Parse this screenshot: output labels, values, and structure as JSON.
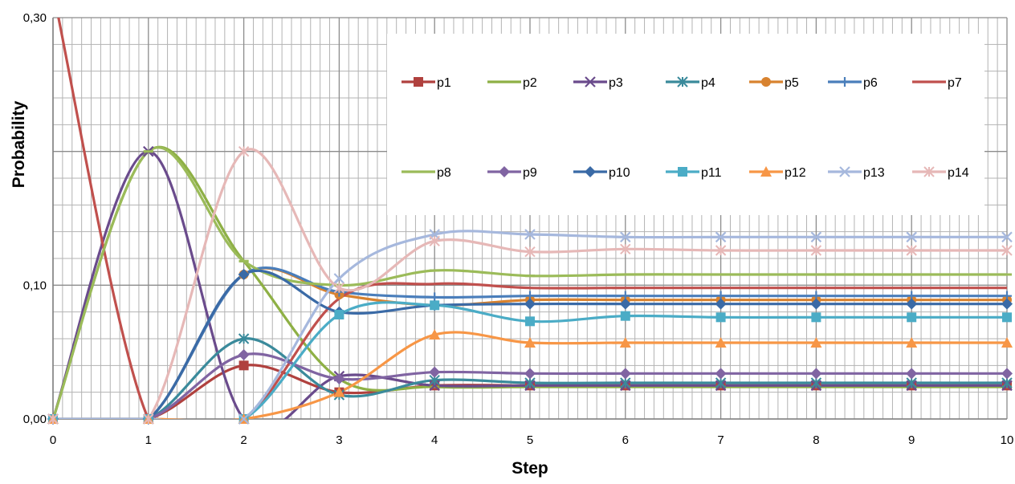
{
  "chart_data": {
    "type": "line",
    "title": "",
    "xlabel": "Step",
    "ylabel": "Probability",
    "xlim": [
      0,
      10
    ],
    "ylim": [
      0,
      0.3
    ],
    "x_ticks": [
      "0",
      "1",
      "2",
      "3",
      "4",
      "5",
      "6",
      "7",
      "8",
      "9",
      "10"
    ],
    "y_tick_labels": [
      "0,00",
      "0,10",
      "",
      "0,30"
    ],
    "y_tick_values": [
      0,
      0.1,
      0.2,
      0.3
    ],
    "grid": true,
    "legend_position": "top-right",
    "x": [
      0,
      1,
      2,
      3,
      4,
      5,
      6,
      7,
      8,
      9,
      10
    ],
    "series": [
      {
        "name": "p1",
        "color": "#b0413e",
        "marker": "square",
        "values": [
          0,
          0,
          0.04,
          0.02,
          0.025,
          0.025,
          0.025,
          0.025,
          0.025,
          0.025,
          0.025
        ]
      },
      {
        "name": "p2",
        "color": "#8eb045",
        "marker": "dash",
        "values": [
          0,
          0.2,
          0.118,
          0.03,
          0.024,
          0.024,
          0.024,
          0.024,
          0.024,
          0.024,
          0.024
        ]
      },
      {
        "name": "p3",
        "color": "#6a4b8c",
        "marker": "x",
        "values": [
          0,
          0.2,
          0,
          0.032,
          0.025,
          0.025,
          0.025,
          0.025,
          0.025,
          0.025,
          0.025
        ]
      },
      {
        "name": "p4",
        "color": "#3a8a9b",
        "marker": "asterisk",
        "values": [
          0,
          0,
          0.06,
          0.018,
          0.029,
          0.027,
          0.027,
          0.027,
          0.027,
          0.027,
          0.027
        ]
      },
      {
        "name": "p5",
        "color": "#d8822f",
        "marker": "circle",
        "values": [
          0,
          0,
          0.108,
          0.093,
          0.085,
          0.089,
          0.089,
          0.089,
          0.089,
          0.089,
          0.089
        ]
      },
      {
        "name": "p6",
        "color": "#4a7ebb",
        "marker": "plus",
        "values": [
          0,
          0,
          0.108,
          0.095,
          0.091,
          0.092,
          0.092,
          0.092,
          0.092,
          0.092,
          0.092
        ]
      },
      {
        "name": "p7",
        "color": "#c0504d",
        "marker": "none",
        "values": [
          0.32,
          0,
          0,
          0.09,
          0.101,
          0.098,
          0.098,
          0.098,
          0.098,
          0.098,
          0.098
        ]
      },
      {
        "name": "p8",
        "color": "#9bbb59",
        "marker": "dash",
        "values": [
          0,
          0.2,
          0.118,
          0.1,
          0.111,
          0.107,
          0.108,
          0.108,
          0.108,
          0.108,
          0.108
        ]
      },
      {
        "name": "p9",
        "color": "#8064a2",
        "marker": "diamond",
        "values": [
          0,
          0,
          0.048,
          0.03,
          0.035,
          0.034,
          0.034,
          0.034,
          0.034,
          0.034,
          0.034
        ]
      },
      {
        "name": "p10",
        "color": "#3a6aa6",
        "marker": "diamond",
        "values": [
          0,
          0,
          0.108,
          0.08,
          0.085,
          0.086,
          0.086,
          0.086,
          0.086,
          0.086,
          0.086
        ]
      },
      {
        "name": "p11",
        "color": "#4bacc6",
        "marker": "square",
        "values": [
          0,
          0,
          0,
          0.078,
          0.085,
          0.073,
          0.077,
          0.076,
          0.076,
          0.076,
          0.076
        ]
      },
      {
        "name": "p12",
        "color": "#f79646",
        "marker": "triangle",
        "values": [
          0,
          0,
          0,
          0.02,
          0.063,
          0.057,
          0.057,
          0.057,
          0.057,
          0.057,
          0.057
        ]
      },
      {
        "name": "p13",
        "color": "#a6b8dd",
        "marker": "x",
        "values": [
          0,
          0,
          0,
          0.105,
          0.138,
          0.138,
          0.136,
          0.136,
          0.136,
          0.136,
          0.136
        ]
      },
      {
        "name": "p14",
        "color": "#e6b8b7",
        "marker": "asterisk",
        "values": [
          0,
          0,
          0.2,
          0.098,
          0.133,
          0.125,
          0.127,
          0.126,
          0.126,
          0.126,
          0.126
        ]
      }
    ]
  }
}
